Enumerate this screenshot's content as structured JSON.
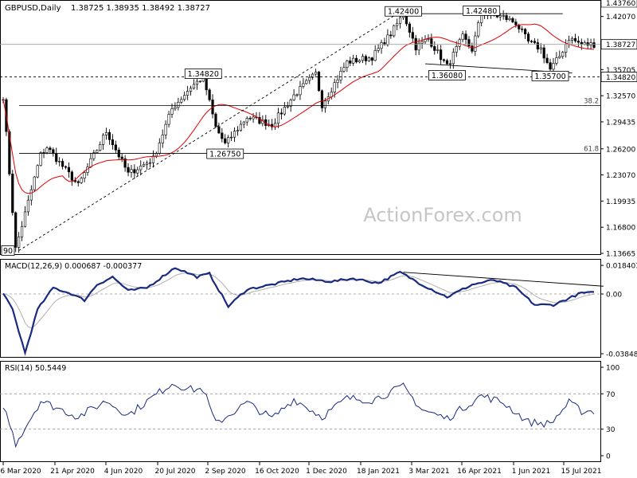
{
  "chart_data": [
    {
      "type": "candlestick",
      "symbol_label": "GBPUSD,Daily",
      "ohlc_label": "1.38725 1.38935 1.38492 1.38727",
      "watermark": "ActionForex.com",
      "ylim": [
        1.13665,
        1.4376
      ],
      "price_ticks": [
        "1.42070",
        "1.38727",
        "1.35705",
        "1.34820",
        "1.32570",
        "1.29435",
        "1.26200",
        "1.23070",
        "1.19935",
        "1.16800",
        "1.13665"
      ],
      "price_tick_values": [
        1.4207,
        1.38727,
        1.35705,
        1.3482,
        1.3257,
        1.29435,
        1.262,
        1.2307,
        1.19935,
        1.168,
        1.13665
      ],
      "top_label": "1.43760",
      "current_price": "1.38727",
      "support_level": "1.34820",
      "x_labels": [
        "6 Mar 2020",
        "21 Apr 2020",
        "4 Jun 2020",
        "20 Jul 2020",
        "2 Sep 2020",
        "16 Oct 2020",
        "1 Dec 2020",
        "18 Jan 2021",
        "3 Mar 2021",
        "16 Apr 2021",
        "1 Jun 2021",
        "15 Jul 2021"
      ],
      "annotations": [
        {
          "text": "1.42400",
          "price": 1.424,
          "bar": 128
        },
        {
          "text": "1.42480",
          "price": 1.4248,
          "bar": 153
        },
        {
          "text": "1.34820",
          "price": 1.3482,
          "bar": 64
        },
        {
          "text": "1.26750",
          "price": 1.2675,
          "bar": 71
        },
        {
          "text": "1.36080",
          "price": 1.3608,
          "bar": 142
        },
        {
          "text": "1.35700",
          "price": 1.357,
          "bar": 175
        },
        {
          "text": "90",
          "price": 1.14,
          "bar": 3
        }
      ],
      "fib_levels": [
        {
          "label": "38.2",
          "price": 1.314
        },
        {
          "label": "61.8",
          "price": 1.2565
        }
      ],
      "pivots": [
        {
          "bar": 0,
          "price": 1.325
        },
        {
          "bar": 4,
          "price": 1.142
        },
        {
          "bar": 12,
          "price": 1.255
        },
        {
          "bar": 14,
          "price": 1.264
        },
        {
          "bar": 24,
          "price": 1.218
        },
        {
          "bar": 33,
          "price": 1.283
        },
        {
          "bar": 40,
          "price": 1.232
        },
        {
          "bar": 48,
          "price": 1.25
        },
        {
          "bar": 54,
          "price": 1.31
        },
        {
          "bar": 60,
          "price": 1.336
        },
        {
          "bar": 64,
          "price": 1.3482
        },
        {
          "bar": 68,
          "price": 1.2875
        },
        {
          "bar": 71,
          "price": 1.2675
        },
        {
          "bar": 78,
          "price": 1.3
        },
        {
          "bar": 86,
          "price": 1.291
        },
        {
          "bar": 93,
          "price": 1.326
        },
        {
          "bar": 100,
          "price": 1.352
        },
        {
          "bar": 102,
          "price": 1.315
        },
        {
          "bar": 110,
          "price": 1.366
        },
        {
          "bar": 118,
          "price": 1.372
        },
        {
          "bar": 124,
          "price": 1.4
        },
        {
          "bar": 128,
          "price": 1.424
        },
        {
          "bar": 132,
          "price": 1.384
        },
        {
          "bar": 136,
          "price": 1.394
        },
        {
          "bar": 142,
          "price": 1.3608
        },
        {
          "bar": 147,
          "price": 1.396
        },
        {
          "bar": 150,
          "price": 1.381
        },
        {
          "bar": 153,
          "price": 1.4248
        },
        {
          "bar": 160,
          "price": 1.42
        },
        {
          "bar": 164,
          "price": 1.413
        },
        {
          "bar": 168,
          "price": 1.39
        },
        {
          "bar": 172,
          "price": 1.382
        },
        {
          "bar": 175,
          "price": 1.357
        },
        {
          "bar": 178,
          "price": 1.373
        },
        {
          "bar": 181,
          "price": 1.395
        },
        {
          "bar": 185,
          "price": 1.3873
        }
      ]
    },
    {
      "type": "line",
      "title": "MACD(12,26,9) 0.000687 -0.000377",
      "ylim": [
        -0.04,
        0.02
      ],
      "ticks": [
        "0.018403",
        "0.00",
        "-0.038483"
      ],
      "tick_values": [
        0.018403,
        0.0,
        -0.038483
      ],
      "macd_pivots": [
        {
          "bar": 0,
          "price": 0.0
        },
        {
          "bar": 3,
          "price": -0.01
        },
        {
          "bar": 7,
          "price": -0.038
        },
        {
          "bar": 11,
          "price": -0.01
        },
        {
          "bar": 16,
          "price": 0.004
        },
        {
          "bar": 22,
          "price": 0.0
        },
        {
          "bar": 26,
          "price": -0.004
        },
        {
          "bar": 30,
          "price": 0.006
        },
        {
          "bar": 35,
          "price": 0.011
        },
        {
          "bar": 40,
          "price": 0.002
        },
        {
          "bar": 46,
          "price": 0.004
        },
        {
          "bar": 55,
          "price": 0.017
        },
        {
          "bar": 62,
          "price": 0.011
        },
        {
          "bar": 66,
          "price": 0.013
        },
        {
          "bar": 72,
          "price": -0.008
        },
        {
          "bar": 78,
          "price": 0.003
        },
        {
          "bar": 86,
          "price": 0.006
        },
        {
          "bar": 95,
          "price": 0.01
        },
        {
          "bar": 105,
          "price": 0.008
        },
        {
          "bar": 112,
          "price": 0.01
        },
        {
          "bar": 120,
          "price": 0.007
        },
        {
          "bar": 127,
          "price": 0.014
        },
        {
          "bar": 134,
          "price": 0.006
        },
        {
          "bar": 142,
          "price": -0.002
        },
        {
          "bar": 150,
          "price": 0.006
        },
        {
          "bar": 157,
          "price": 0.009
        },
        {
          "bar": 164,
          "price": 0.004
        },
        {
          "bar": 170,
          "price": -0.007
        },
        {
          "bar": 176,
          "price": -0.007
        },
        {
          "bar": 185,
          "price": 0.0007
        }
      ],
      "trendline": [
        {
          "bar": 128,
          "price": 0.014
        },
        {
          "bar": 190,
          "price": 0.005
        }
      ]
    },
    {
      "type": "line",
      "title": "RSI(14) 50.5449",
      "ylim": [
        0,
        100
      ],
      "ticks": [
        "100",
        "70",
        "30",
        "0"
      ],
      "tick_values": [
        100,
        70,
        30,
        0
      ],
      "rsi_pivots": [
        {
          "bar": 0,
          "price": 58
        },
        {
          "bar": 4,
          "price": 14
        },
        {
          "bar": 12,
          "price": 62
        },
        {
          "bar": 24,
          "price": 44
        },
        {
          "bar": 33,
          "price": 62
        },
        {
          "bar": 40,
          "price": 46
        },
        {
          "bar": 54,
          "price": 82
        },
        {
          "bar": 60,
          "price": 75
        },
        {
          "bar": 64,
          "price": 75
        },
        {
          "bar": 68,
          "price": 36
        },
        {
          "bar": 78,
          "price": 60
        },
        {
          "bar": 86,
          "price": 42
        },
        {
          "bar": 93,
          "price": 64
        },
        {
          "bar": 102,
          "price": 44
        },
        {
          "bar": 110,
          "price": 65
        },
        {
          "bar": 118,
          "price": 63
        },
        {
          "bar": 128,
          "price": 78
        },
        {
          "bar": 134,
          "price": 52
        },
        {
          "bar": 142,
          "price": 42
        },
        {
          "bar": 153,
          "price": 68
        },
        {
          "bar": 160,
          "price": 60
        },
        {
          "bar": 168,
          "price": 38
        },
        {
          "bar": 175,
          "price": 36
        },
        {
          "bar": 181,
          "price": 60
        },
        {
          "bar": 185,
          "price": 50.5
        }
      ]
    }
  ]
}
